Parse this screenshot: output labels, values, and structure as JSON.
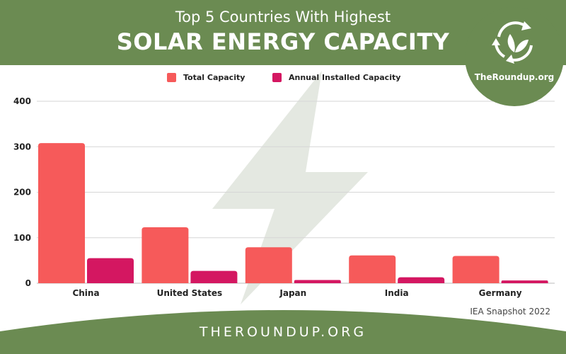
{
  "header": {
    "title_line1": "Top 5 Countries With Highest",
    "title_line2": "SOLAR ENERGY CAPACITY"
  },
  "badge": {
    "text": "TheRoundup.org",
    "icon": "recycle-leaf-icon"
  },
  "colors": {
    "header_green": "#6b8b52",
    "total": "#f65a5a",
    "annual": "#d41761",
    "watermark": "#e4e8e1"
  },
  "chart_data": {
    "type": "bar",
    "categories": [
      "China",
      "United States",
      "Japan",
      "India",
      "Germany"
    ],
    "series": [
      {
        "name": "Total Capacity",
        "values": [
          308,
          123,
          79,
          61,
          60
        ]
      },
      {
        "name": "Annual Installed Capacity",
        "values": [
          55,
          27,
          7,
          13,
          6
        ]
      }
    ],
    "yticks": [
      0,
      100,
      200,
      300,
      400
    ],
    "ylim": [
      0,
      400
    ],
    "grid": true,
    "legend": "top-center"
  },
  "source_note": "IEA Snapshot 2022",
  "footer": {
    "text": "THEROUNDUP.ORG"
  }
}
